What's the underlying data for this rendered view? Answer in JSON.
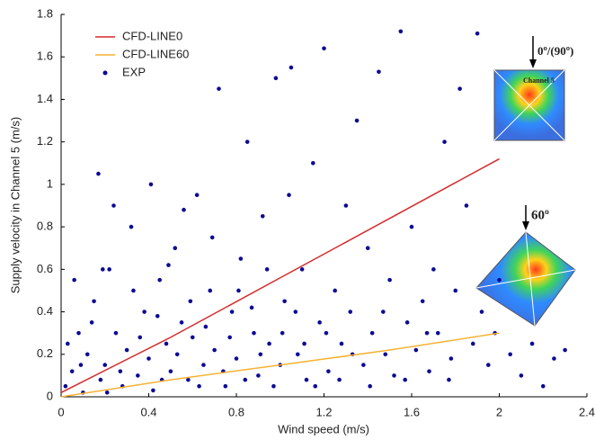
{
  "chart_data": {
    "type": "scatter",
    "x_label": "Wind speed (m/s)",
    "y_label": "Supply velocity in Channel 5 (m/s)",
    "xlim": [
      0,
      2.4
    ],
    "ylim": [
      0,
      1.8
    ],
    "xticks": [
      0,
      0.4,
      0.8,
      1.2,
      1.6,
      2,
      2.4
    ],
    "yticks": [
      0,
      0.2,
      0.4,
      0.6,
      0.8,
      1,
      1.2,
      1.4,
      1.6,
      1.8
    ],
    "legend": "upper-left",
    "annotations": [
      "0º/(90º)",
      "Channel 5",
      "60º"
    ],
    "series": [
      {
        "name": "CFD-LINE0",
        "type": "line",
        "color": "#d42a2a",
        "x": [
          0,
          0.5,
          1,
          1.5,
          2
        ],
        "values": [
          0.02,
          0.28,
          0.56,
          0.84,
          1.12
        ]
      },
      {
        "name": "CFD-LINE60",
        "type": "line",
        "color": "#f5b335",
        "x": [
          0,
          0.5,
          1,
          1.5,
          2
        ],
        "values": [
          0,
          0.08,
          0.15,
          0.22,
          0.3
        ]
      },
      {
        "name": "EXP",
        "type": "scatter",
        "color": "#0a0a96",
        "x": [
          0.02,
          0.05,
          0.08,
          0.1,
          0.12,
          0.15,
          0.18,
          0.2,
          0.22,
          0.25,
          0.28,
          0.3,
          0.32,
          0.35,
          0.38,
          0.4,
          0.42,
          0.45,
          0.48,
          0.5,
          0.52,
          0.55,
          0.58,
          0.6,
          0.62,
          0.65,
          0.68,
          0.7,
          0.72,
          0.75,
          0.78,
          0.8,
          0.82,
          0.85,
          0.88,
          0.9,
          0.92,
          0.95,
          0.98,
          1.0,
          1.02,
          1.05,
          1.08,
          1.1,
          1.12,
          1.15,
          1.18,
          1.2,
          1.22,
          1.25,
          1.28,
          1.3,
          1.32,
          1.35,
          1.38,
          1.4,
          1.42,
          1.45,
          1.48,
          1.5,
          1.52,
          1.55,
          1.58,
          1.6,
          1.62,
          1.65,
          1.68,
          1.7,
          1.72,
          1.75,
          1.78,
          1.8,
          1.82,
          1.85,
          1.88,
          1.9,
          1.92,
          1.95,
          1.98,
          2.0,
          2.05,
          2.1,
          2.15,
          2.2,
          2.25,
          2.3,
          0.03,
          0.06,
          0.09,
          0.14,
          0.17,
          0.19,
          0.21,
          0.24,
          0.27,
          0.33,
          0.36,
          0.41,
          0.44,
          0.46,
          0.49,
          0.53,
          0.56,
          0.59,
          0.63,
          0.66,
          0.69,
          0.74,
          0.77,
          0.81,
          0.84,
          0.87,
          0.91,
          0.94,
          0.97,
          1.01,
          1.04,
          1.07,
          1.11,
          1.16,
          1.21,
          1.27,
          1.33,
          1.41,
          1.47,
          1.57,
          1.67,
          1.77
        ],
        "values": [
          0.05,
          0.12,
          0.3,
          0.02,
          0.2,
          0.45,
          0.08,
          0.15,
          0.6,
          0.3,
          0.05,
          0.22,
          0.8,
          0.1,
          0.4,
          0.18,
          0.03,
          0.55,
          0.25,
          0.12,
          0.7,
          0.35,
          0.08,
          0.28,
          0.95,
          0.15,
          0.5,
          0.22,
          1.45,
          0.05,
          0.4,
          0.18,
          0.65,
          1.2,
          0.3,
          0.1,
          0.85,
          0.25,
          1.5,
          0.15,
          0.45,
          1.55,
          0.2,
          0.6,
          0.08,
          1.1,
          0.35,
          1.64,
          0.12,
          0.5,
          0.25,
          0.9,
          0.4,
          1.3,
          0.15,
          0.7,
          0.3,
          1.53,
          0.2,
          0.55,
          0.1,
          1.72,
          0.35,
          0.8,
          0.22,
          0.45,
          0.12,
          0.6,
          0.3,
          1.2,
          0.18,
          0.5,
          1.45,
          0.9,
          0.25,
          1.71,
          0.4,
          0.15,
          0.3,
          0.55,
          0.2,
          0.1,
          0.25,
          0.05,
          0.18,
          0.22,
          0.25,
          0.55,
          0.15,
          0.35,
          1.05,
          0.6,
          0.02,
          0.9,
          0.12,
          0.5,
          0.28,
          1.0,
          0.38,
          0.08,
          0.62,
          0.2,
          0.88,
          0.45,
          0.05,
          0.33,
          0.75,
          0.12,
          0.28,
          0.5,
          0.08,
          0.42,
          0.2,
          0.6,
          0.05,
          0.3,
          0.95,
          0.4,
          0.25,
          0.05,
          0.3,
          0.08,
          0.2,
          0.05,
          0.4,
          0.08,
          0.3,
          0.08
        ]
      }
    ]
  }
}
